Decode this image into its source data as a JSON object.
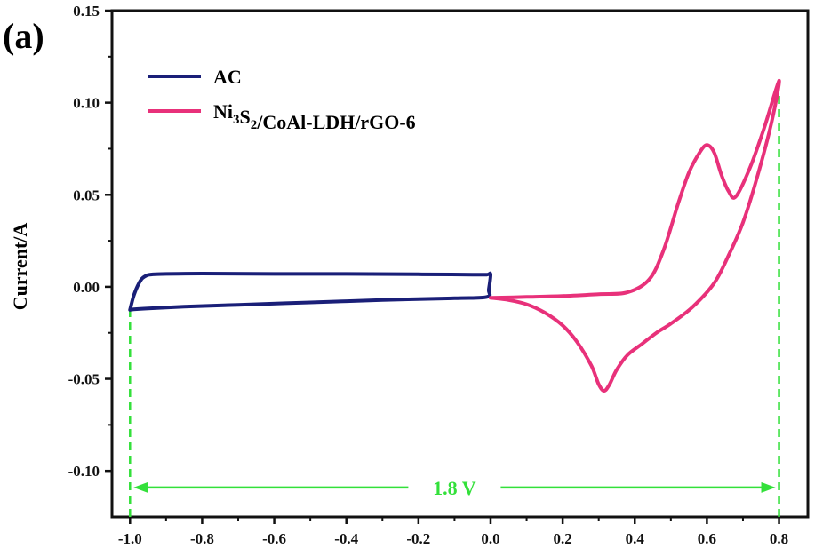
{
  "panel_label": "(a)",
  "colors": {
    "ac": "#1a1f78",
    "ni3s2": "#e8317a",
    "guide": "#33e03a",
    "axis": "#111111"
  },
  "chart_data": {
    "type": "line",
    "title": "",
    "xlabel": "",
    "ylabel": "Current/A",
    "xlim": [
      -1.05,
      0.88
    ],
    "ylim": [
      -0.125,
      0.15
    ],
    "xticks": [
      "-1.0",
      "-0.8",
      "-0.6",
      "-0.4",
      "-0.2",
      "0.0",
      "0.2",
      "0.4",
      "0.6",
      "0.8"
    ],
    "xtick_values": [
      -1.0,
      -0.8,
      -0.6,
      -0.4,
      -0.2,
      0.0,
      0.2,
      0.4,
      0.6,
      0.8
    ],
    "yticks": [
      "0.15",
      "0.10",
      "0.05",
      "0.00",
      "-0.05",
      "-0.10"
    ],
    "ytick_values": [
      0.15,
      0.1,
      0.05,
      0.0,
      -0.05,
      -0.1
    ],
    "legend": {
      "placement": "top-left",
      "entries": [
        "AC",
        "Ni3S2/CoAl-LDH/rGO-6"
      ]
    },
    "series": [
      {
        "name": "AC",
        "color": "#1a1f78",
        "x": [
          -1.0,
          -0.99,
          -0.975,
          -0.96,
          -0.93,
          -0.8,
          -0.6,
          -0.4,
          -0.2,
          -0.05,
          -0.01,
          0.0,
          -0.005,
          -0.01,
          -0.1,
          -0.3,
          -0.5,
          -0.7,
          -0.85,
          -0.95,
          -0.99,
          -1.0
        ],
        "y": [
          -0.0125,
          -0.005,
          0.002,
          0.0055,
          0.0068,
          0.0072,
          0.007,
          0.007,
          0.0068,
          0.0066,
          0.0066,
          0.0068,
          -0.0015,
          -0.0055,
          -0.0062,
          -0.0072,
          -0.0085,
          -0.0098,
          -0.0108,
          -0.0117,
          -0.0122,
          -0.0125
        ]
      },
      {
        "name": "Ni3S2/CoAl-LDH/rGO-6",
        "color": "#e8317a",
        "x": [
          0.0,
          0.1,
          0.2,
          0.3,
          0.38,
          0.44,
          0.48,
          0.52,
          0.55,
          0.58,
          0.6,
          0.62,
          0.64,
          0.66,
          0.68,
          0.72,
          0.76,
          0.8,
          0.78,
          0.74,
          0.7,
          0.66,
          0.62,
          0.56,
          0.5,
          0.46,
          0.42,
          0.38,
          0.35,
          0.33,
          0.315,
          0.3,
          0.28,
          0.24,
          0.2,
          0.15,
          0.1,
          0.05,
          0.0
        ],
        "y": [
          -0.006,
          -0.0055,
          -0.005,
          -0.004,
          -0.003,
          0.004,
          0.02,
          0.045,
          0.062,
          0.073,
          0.077,
          0.073,
          0.061,
          0.052,
          0.049,
          0.065,
          0.087,
          0.112,
          0.09,
          0.06,
          0.035,
          0.017,
          0.002,
          -0.011,
          -0.02,
          -0.025,
          -0.031,
          -0.037,
          -0.045,
          -0.053,
          -0.0565,
          -0.053,
          -0.043,
          -0.03,
          -0.021,
          -0.014,
          -0.0095,
          -0.0072,
          -0.006
        ]
      }
    ],
    "annotations": [
      {
        "type": "vline",
        "x": -1.0,
        "from_y": -0.125,
        "to_y": -0.0125
      },
      {
        "type": "vline",
        "x": 0.8,
        "from_y": -0.125,
        "to_y": 0.105
      },
      {
        "type": "double-arrow",
        "x0": -1.0,
        "x1": 0.8,
        "y": -0.109,
        "label": "1.8 V"
      }
    ]
  }
}
